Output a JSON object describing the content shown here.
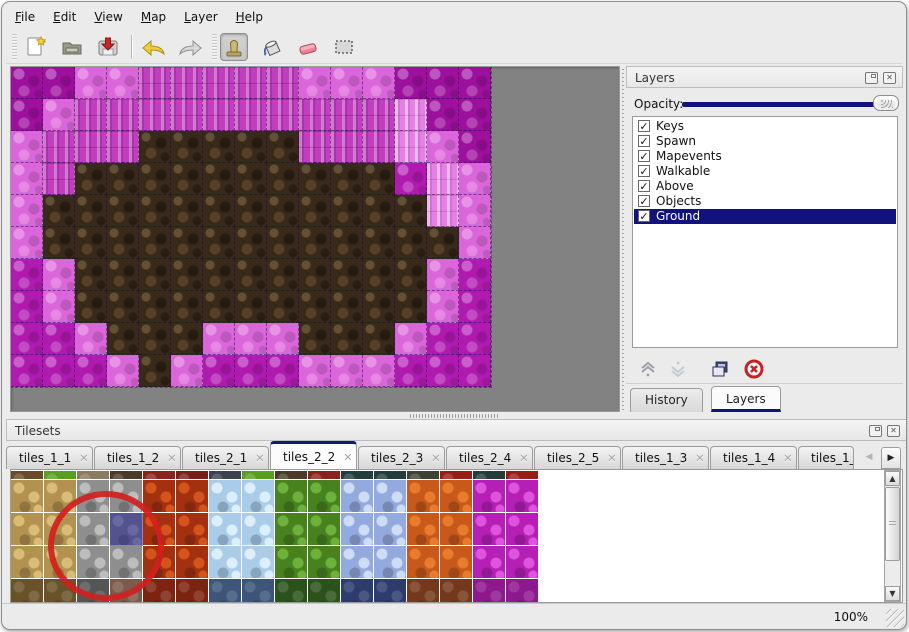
{
  "window": {
    "bg": "#ebebeb",
    "accent_navy": "#12127e",
    "canvas_gray": "#828282"
  },
  "icons": {
    "close_glyph": "✕",
    "check_glyph": "✓",
    "left_arrow": "◀",
    "right_arrow": "▶",
    "up_arrow": "▲",
    "down_arrow": "▼"
  },
  "menubar": {
    "items": [
      "File",
      "Edit",
      "View",
      "Map",
      "Layer",
      "Help"
    ]
  },
  "toolbar": {
    "buttons": [
      "new-file",
      "open-file",
      "save-file",
      "undo",
      "redo",
      "stamp-tool",
      "fill-tool",
      "eraser-tool",
      "select-tool"
    ],
    "active_button": "stamp-tool"
  },
  "map": {
    "tile_size": 32,
    "cols": 15,
    "palette": {
      "B": "#38291a",
      "P": "#db66db",
      "M": "#b01ab0",
      "D": "#9d0f9d",
      "W": "#c13ec1",
      "L": "#e680e6"
    },
    "rows": [
      "DDPPWWWWWPPPDDD",
      "DPWWWWWWWWWWLDD",
      "PWWWBBBBBWWWLPD",
      "PWBBBBBBBBBBMLP",
      "PBBBBBBBBBBBBLP",
      "PBBBBBBBBBBBBBP",
      "MPBBBBBBBBBBBPM",
      "MPBBBBBBBBBBBPM",
      "MMPBBBPPPBBBPMM",
      "MMMPBPMMMPPPMMM"
    ]
  },
  "layers_panel": {
    "title": "Layers",
    "opacity_label": "Opacity:",
    "layers": [
      {
        "name": "Keys",
        "checked": true
      },
      {
        "name": "Spawn",
        "checked": true
      },
      {
        "name": "Mapevents",
        "checked": true
      },
      {
        "name": "Walkable",
        "checked": true
      },
      {
        "name": "Above",
        "checked": true
      },
      {
        "name": "Objects",
        "checked": true
      },
      {
        "name": "Ground",
        "checked": true
      }
    ],
    "selected_layer": "Ground",
    "toolbar_buttons": [
      "raise-layer",
      "lower-layer",
      "duplicate-layer",
      "delete-layer"
    ],
    "bottom_tabs": [
      {
        "label": "History",
        "active": false
      },
      {
        "label": "Layers",
        "active": true
      }
    ]
  },
  "tilesets_panel": {
    "title": "Tilesets",
    "tabs": [
      {
        "label": "tiles_1_1",
        "closable": true,
        "active": false
      },
      {
        "label": "tiles_1_2",
        "closable": true,
        "active": false
      },
      {
        "label": "tiles_2_1",
        "closable": true,
        "active": false
      },
      {
        "label": "tiles_2_2",
        "closable": true,
        "active": true
      },
      {
        "label": "tiles_2_3",
        "closable": true,
        "active": false
      },
      {
        "label": "tiles_2_4",
        "closable": true,
        "active": false
      },
      {
        "label": "tiles_2_5",
        "closable": true,
        "active": false
      },
      {
        "label": "tiles_1_3",
        "closable": true,
        "active": false
      },
      {
        "label": "tiles_1_4",
        "closable": true,
        "active": false
      },
      {
        "label": "tiles_1_",
        "closable": false,
        "active": false
      }
    ],
    "status_zoom": "100%"
  },
  "tileset_grid": {
    "tile_step": 33,
    "n_cols": 16,
    "full_rows": 3,
    "top_strip": [
      "#6b4a28",
      "#56a01e",
      "#8a7a60",
      "#4c3a28",
      "#8c221c",
      "#7a1e18",
      "#39424e",
      "#56a01e",
      "#4c3a28",
      "#8c221c",
      "#233c3c",
      "#233c3c",
      "#3c4534",
      "#9a1d14",
      "#233c3c",
      "#9a1d14"
    ],
    "columns": [
      {
        "base": "#b3914f",
        "light": "#d8bc78"
      },
      {
        "base": "#b3914f",
        "light": "#d8bc78"
      },
      {
        "base": "#8e8e8e",
        "light": "#bdbdbd"
      },
      {
        "base": "#8e8e8e",
        "light": "#bdbdbd"
      },
      {
        "base": "#a33110",
        "light": "#d5541c"
      },
      {
        "base": "#a33110",
        "light": "#d5541c"
      },
      {
        "base": "#a9cde8",
        "light": "#dceffa"
      },
      {
        "base": "#a9cde8",
        "light": "#dceffa"
      },
      {
        "base": "#47821f",
        "light": "#6bb13a"
      },
      {
        "base": "#47821f",
        "light": "#6bb13a"
      },
      {
        "base": "#93aade",
        "light": "#cfdcf5"
      },
      {
        "base": "#93aade",
        "light": "#cfdcf5"
      },
      {
        "base": "#c8591b",
        "light": "#e87c2c"
      },
      {
        "base": "#c8591b",
        "light": "#e87c2c"
      },
      {
        "base": "#b51fb5",
        "light": "#dd55dd"
      },
      {
        "base": "#b51fb5",
        "light": "#dd55dd"
      }
    ],
    "bottom_row": [
      "#6a5228",
      "#6a5228",
      "#555555",
      "#7c5a4a",
      "#7c2410",
      "#7c2410",
      "#3c5578",
      "#3c5578",
      "#2c521c",
      "#2c521c",
      "#2c3c6c",
      "#2c3c6c",
      "#74391b",
      "#74391b",
      "#8e188e",
      "#8e188e"
    ],
    "selection": {
      "row": 1,
      "col": 3,
      "color": "rgba(35,35,140,0.55)"
    },
    "annotation_circle_color": "#d11f1f"
  }
}
